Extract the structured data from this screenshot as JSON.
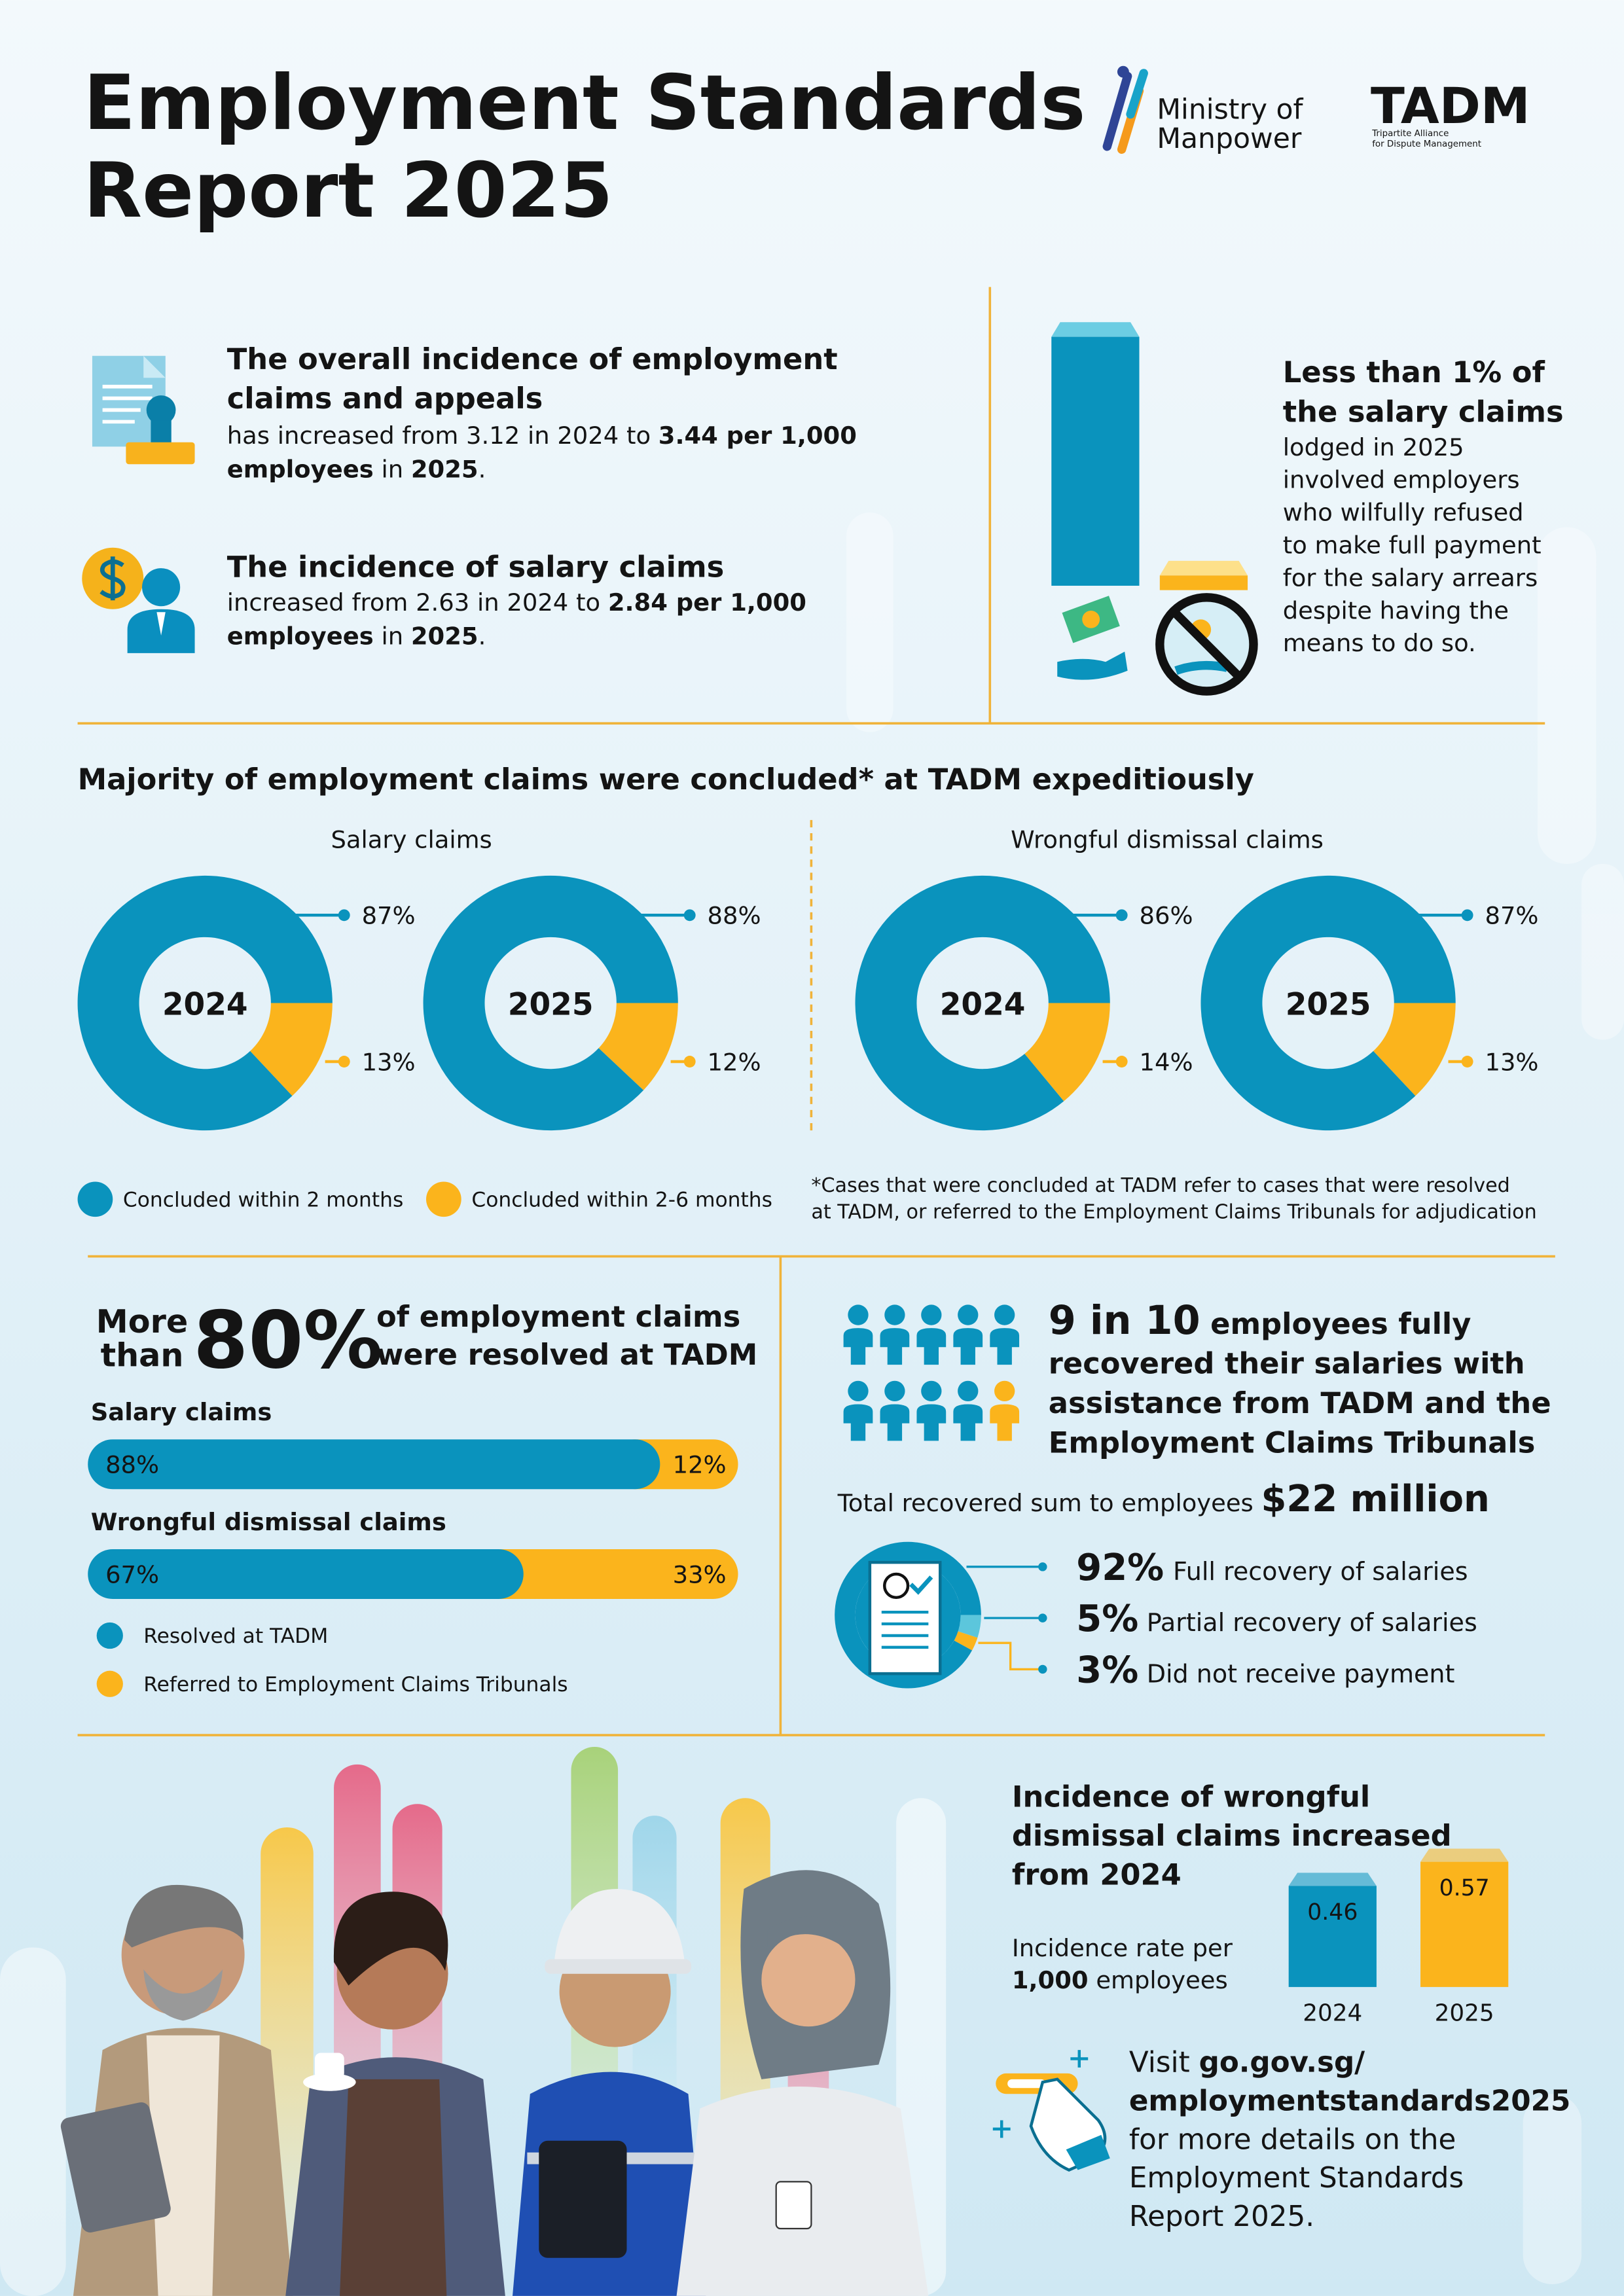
{
  "header": {
    "title": [
      "Employment Standards",
      "Report 2025"
    ],
    "mom_logo": [
      "Ministry of",
      "Manpower"
    ],
    "tadm_logo": "TADM",
    "tadm_logo_sub": [
      "Tripartite Alliance",
      "for Dispute Management"
    ]
  },
  "incidence": [
    {
      "heading": [
        "The overall incidence of employment",
        "claims and appeals"
      ],
      "body": [
        [
          {
            "text": "has increased from 3.12 in 2024 to "
          },
          {
            "text": "3.44 per 1,000",
            "bold": true
          }
        ],
        [
          {
            "text": "employees",
            "bold": true
          },
          {
            "text": " in "
          },
          {
            "text": "2025",
            "bold": true
          },
          {
            "text": "."
          }
        ]
      ]
    },
    {
      "heading": [
        "The incidence of salary claims"
      ],
      "body": [
        [
          {
            "text": "increased from 2.63 in 2024 to "
          },
          {
            "text": "2.84 per 1,000",
            "bold": true
          }
        ],
        [
          {
            "text": "employees",
            "bold": true
          },
          {
            "text": " in "
          },
          {
            "text": "2025",
            "bold": true
          },
          {
            "text": "."
          }
        ]
      ]
    }
  ],
  "wilful": {
    "heading": [
      "Less than 1% of",
      "the salary claims"
    ],
    "body": [
      "lodged in 2025",
      "involved employers",
      "who wilfully refused",
      "to make full payment",
      "for the salary arrears",
      "despite having the",
      "means to do so."
    ]
  },
  "completion": {
    "title": "Majority of employment claims were concluded* at TADM expeditiously",
    "groups": [
      {
        "label": "Salary claims",
        "donuts": [
          {
            "year": "2024",
            "values": [
              87,
              13
            ],
            "value_labels": [
              "87%",
              "13%"
            ]
          },
          {
            "year": "2025",
            "values": [
              88,
              12
            ],
            "value_labels": [
              "88%",
              "12%"
            ]
          }
        ]
      },
      {
        "label": "Wrongful dismissal claims",
        "donuts": [
          {
            "year": "2024",
            "values": [
              86,
              14
            ],
            "value_labels": [
              "86%",
              "14%"
            ]
          },
          {
            "year": "2025",
            "values": [
              87,
              13
            ],
            "value_labels": [
              "87%",
              "13%"
            ]
          }
        ]
      }
    ],
    "legend": [
      {
        "name": "Concluded within 2 months",
        "color": "#0a93bd"
      },
      {
        "name": "Concluded within 2-6 months",
        "color": "#fbb41c"
      }
    ],
    "footnote": [
      "*Cases that were concluded at TADM refer to cases that were resolved",
      "at TADM, or referred to the Employment Claims Tribunals for adjudication"
    ]
  },
  "resolution": {
    "heading_pre": [
      "More",
      "than"
    ],
    "heading_big": "80%",
    "heading_post": [
      "of employment claims",
      "were resolved at TADM"
    ],
    "bars": [
      {
        "label": "Salary claims",
        "values": [
          88,
          12
        ],
        "value_labels": [
          "88%",
          "12%"
        ]
      },
      {
        "label": "Wrongful dismissal claims",
        "values": [
          67,
          33
        ],
        "value_labels": [
          "67%",
          "33%"
        ]
      }
    ],
    "legend": [
      {
        "name": "Resolved at TADM",
        "color": "#0a93bd"
      },
      {
        "name": "Referred to Employment Claims Tribunals",
        "color": "#fbb41c"
      }
    ]
  },
  "recovery": {
    "heading": [
      [
        {
          "text": "9 in 10",
          "emphasis": true
        },
        {
          "text": " employees fully"
        }
      ],
      [
        {
          "text": "recovered their salaries with"
        }
      ],
      [
        {
          "text": "assistance from TADM and the"
        }
      ],
      [
        {
          "text": "Employment Claims Tribunals"
        }
      ]
    ],
    "total": [
      {
        "text": "Total recovered sum to employees "
      },
      {
        "text": "$22 million",
        "emphasis": true
      }
    ],
    "outcomes": [
      {
        "value": 92,
        "value_label": "92%",
        "label": "Full recovery of salaries",
        "color": "#0a93bd"
      },
      {
        "value": 5,
        "value_label": "5%",
        "label": "Partial recovery of salaries",
        "color": "#5cc6dc"
      },
      {
        "value": 3,
        "value_label": "3%",
        "label": "Did not receive payment",
        "color": "#fbb41c"
      }
    ]
  },
  "wrongful_incidence": {
    "heading": [
      "Incidence of wrongful",
      "dismissal claims increased",
      "from 2024"
    ],
    "axis_label": [
      [
        {
          "text": "Incidence rate per"
        }
      ],
      [
        {
          "text": "1,000",
          "bold": true
        },
        {
          "text": " employees"
        }
      ]
    ],
    "categories": [
      "2024",
      "2025"
    ],
    "values": [
      0.46,
      0.57
    ],
    "colors": [
      "#0a93bd",
      "#fbb41c"
    ]
  },
  "visit": [
    [
      {
        "text": "Visit "
      },
      {
        "text": "go.gov.sg/",
        "bold": true
      }
    ],
    [
      {
        "text": "employmentstandards2025",
        "bold": true
      }
    ],
    [
      {
        "text": "for more details on the"
      }
    ],
    [
      {
        "text": "Employment Standards"
      }
    ],
    [
      {
        "text": "Report 2025."
      }
    ]
  ]
}
